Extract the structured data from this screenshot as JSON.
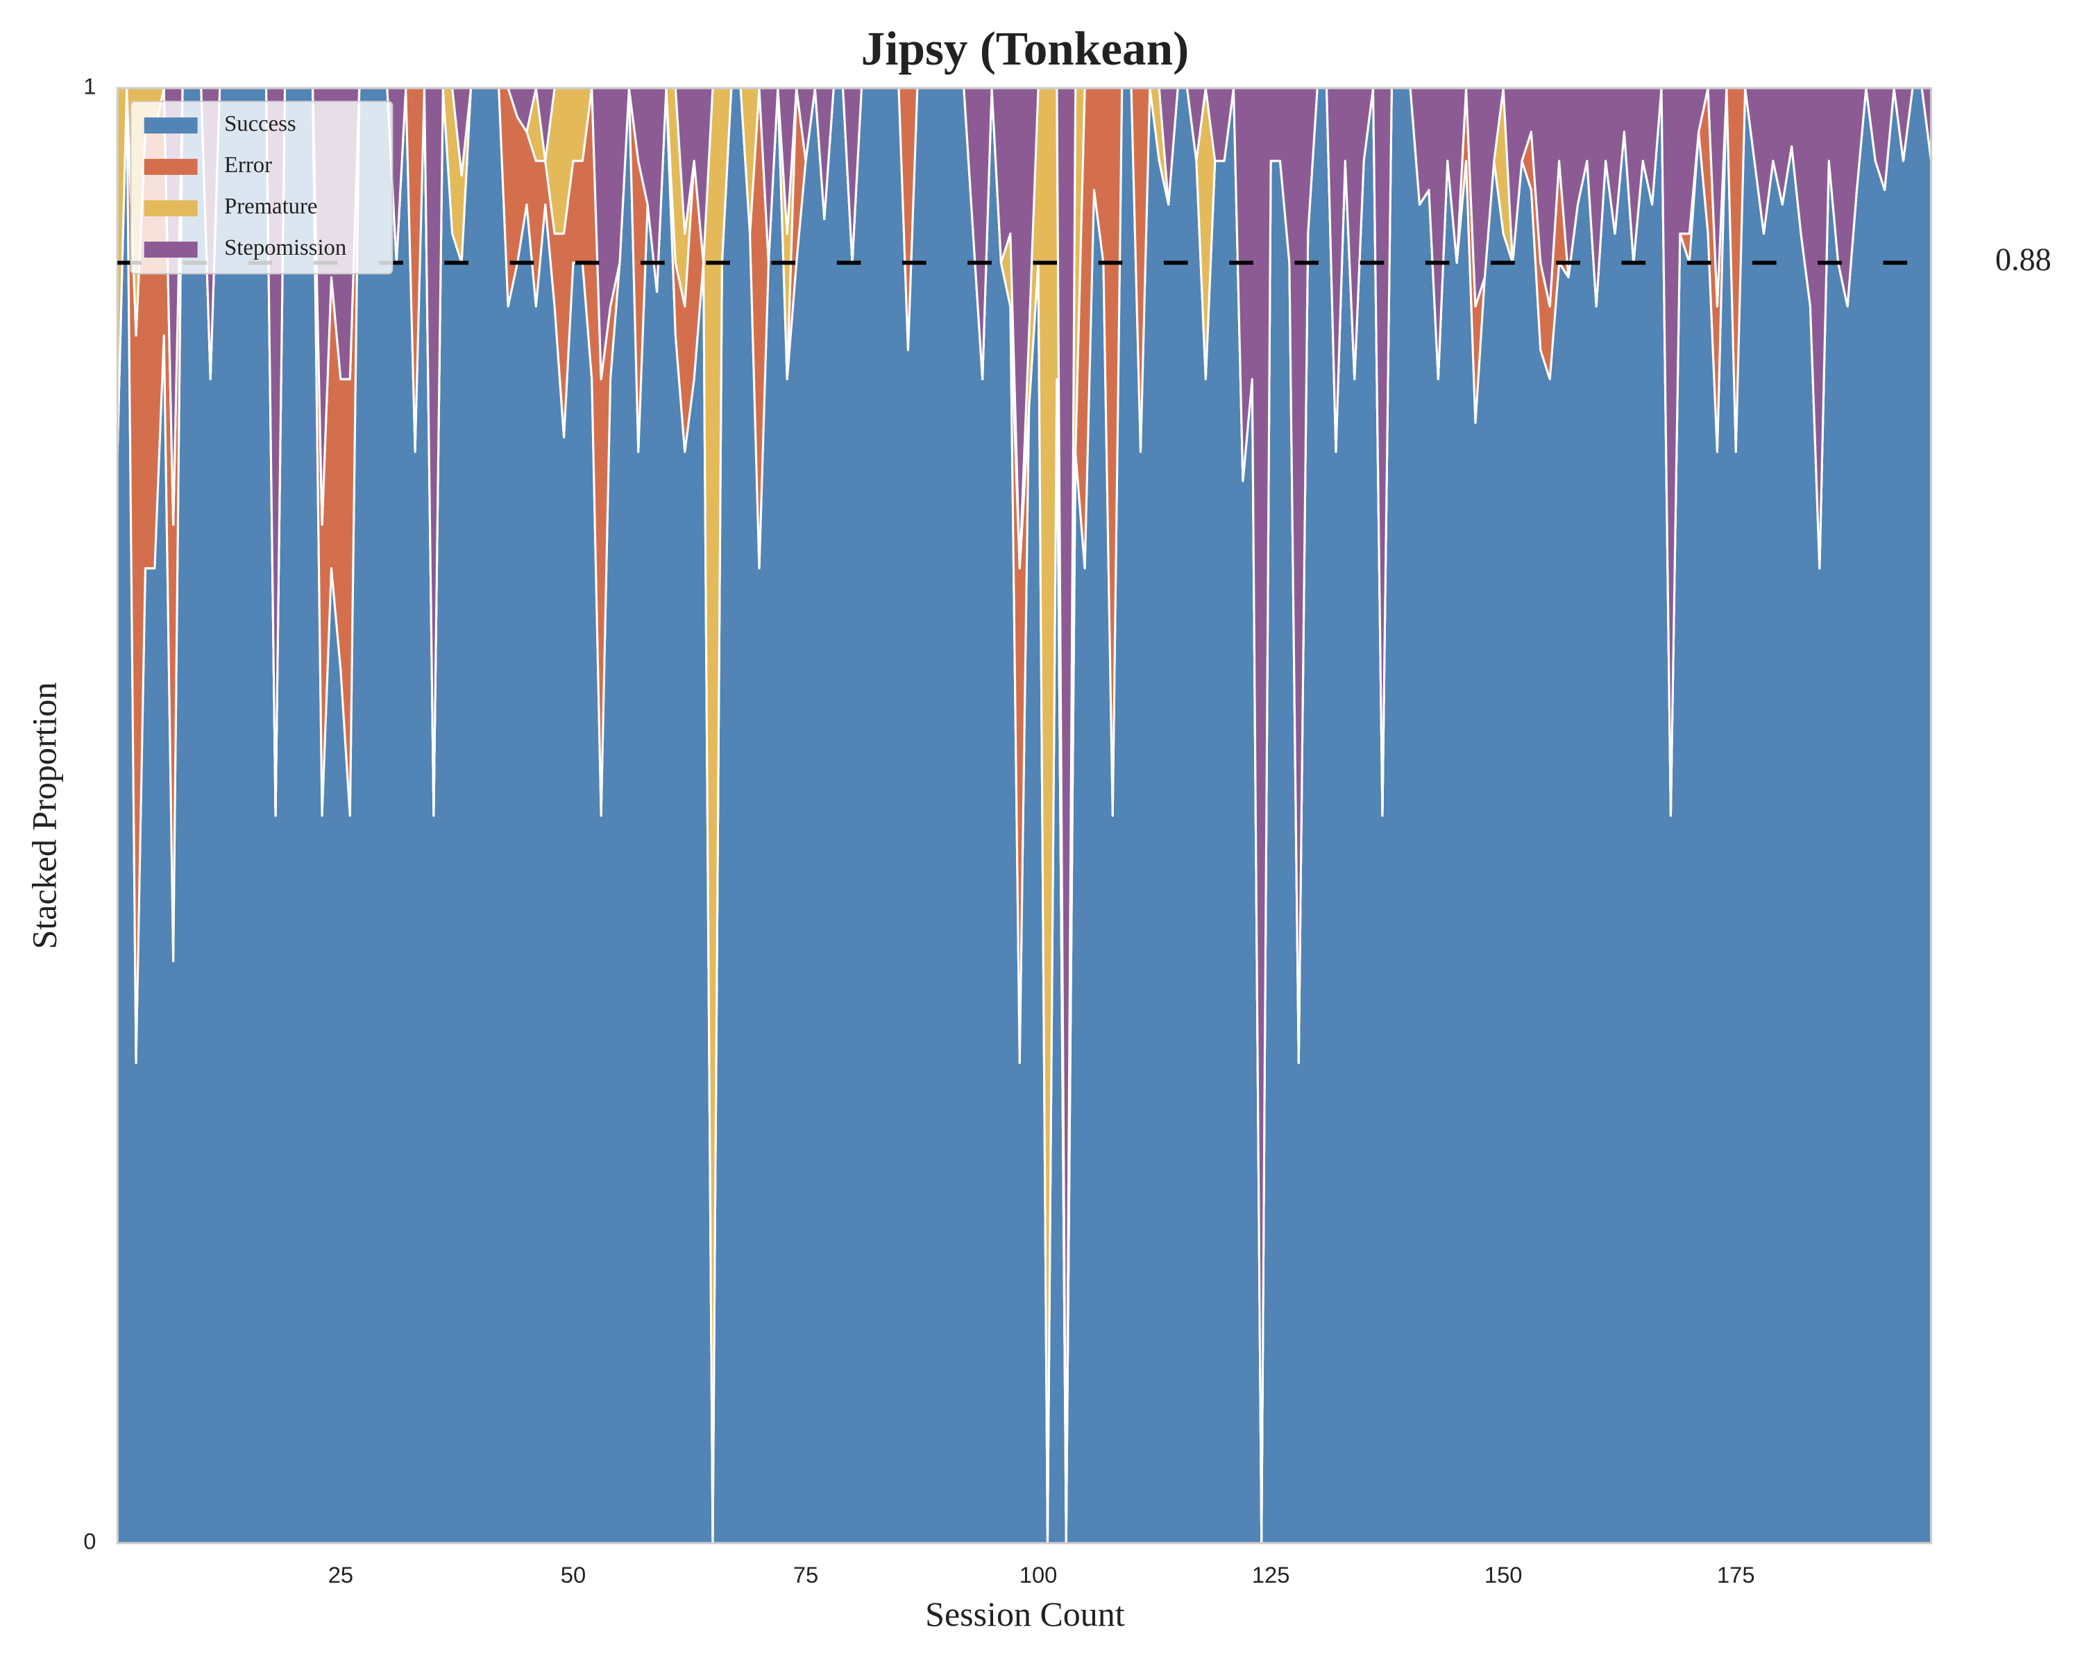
{
  "chart_data": {
    "type": "area",
    "stacked": true,
    "title": "Jipsy (Tonkean)",
    "xlabel": "Session Count",
    "ylabel": "Stacked Proportion",
    "x": [
      1,
      2,
      3,
      4,
      5,
      6,
      7,
      8,
      9,
      10,
      11,
      12,
      13,
      14,
      15,
      16,
      17,
      18,
      19,
      20,
      21,
      22,
      23,
      24,
      25,
      26,
      27,
      28,
      29,
      30,
      31,
      32,
      33,
      34,
      35,
      36,
      37,
      38,
      39,
      40,
      41,
      42,
      43,
      44,
      45,
      46,
      47,
      48,
      49,
      50,
      51,
      52,
      53,
      54,
      55,
      56,
      57,
      58,
      59,
      60,
      61,
      62,
      63,
      64,
      65,
      66,
      67,
      68,
      69,
      70,
      71,
      72,
      73,
      74,
      75,
      76,
      77,
      78,
      79,
      80,
      81,
      82,
      83,
      84,
      85,
      86,
      87,
      88,
      89,
      90,
      91,
      92,
      93,
      94,
      95,
      96,
      97,
      98,
      99,
      100,
      101,
      102,
      103,
      104,
      105,
      106,
      107,
      108,
      109,
      110,
      111,
      112,
      113,
      114,
      115,
      116,
      117,
      118,
      119,
      120,
      121,
      122,
      123,
      124,
      125,
      126,
      127,
      128,
      129,
      130,
      131,
      132,
      133,
      134,
      135,
      136,
      137,
      138,
      139,
      140,
      141,
      142,
      143,
      144,
      145,
      146,
      147,
      148,
      149,
      150,
      151,
      152,
      153,
      154,
      155,
      156,
      157,
      158,
      159,
      160,
      161,
      162,
      163,
      164,
      165,
      166,
      167,
      168,
      169,
      170,
      171,
      172,
      173,
      174,
      175,
      176,
      177,
      178,
      179,
      180,
      181,
      182,
      183,
      184,
      185,
      186,
      187,
      188,
      189,
      190,
      191,
      192,
      193,
      194,
      195,
      196
    ],
    "series": [
      {
        "name": "Success",
        "color": "#5284b5",
        "values": [
          0.75,
          1,
          0.33,
          0.67,
          0.67,
          0.83,
          0.4,
          1,
          1,
          1,
          0.8,
          1,
          1,
          1,
          1,
          1,
          1,
          0.5,
          1,
          1,
          1,
          1,
          0.5,
          0.67,
          0.6,
          0.5,
          1,
          1,
          1,
          1,
          0.88,
          1,
          0.75,
          1,
          0.5,
          1,
          0.9,
          0.88,
          1,
          1,
          1,
          1,
          0.85,
          0.88,
          0.92,
          0.85,
          0.92,
          0.85,
          0.76,
          0.88,
          0.88,
          0.8,
          0.5,
          0.8,
          0.88,
          1,
          0.75,
          0.92,
          0.86,
          1,
          0.83,
          0.75,
          0.8,
          0.88,
          0,
          0.88,
          1,
          1,
          0.9,
          0.67,
          0.88,
          1,
          0.8,
          0.88,
          0.95,
          1,
          0.91,
          1,
          1,
          0.88,
          1,
          1,
          1,
          1,
          1,
          0.82,
          1,
          1,
          1,
          1,
          1,
          1,
          0.9,
          0.8,
          1,
          0.88,
          0.85,
          0.33,
          0.78,
          0.88,
          0,
          0.8,
          0,
          0.75,
          0.67,
          0.93,
          0.88,
          0.5,
          1,
          1,
          0.75,
          1,
          0.95,
          0.92,
          1,
          1,
          0.95,
          0.8,
          0.95,
          0.95,
          1,
          0.73,
          0.8,
          0,
          0.95,
          0.95,
          0.88,
          0.33,
          0.9,
          1,
          1,
          0.75,
          0.95,
          0.8,
          0.95,
          1,
          0.5,
          1,
          1,
          1,
          0.92,
          0.93,
          0.8,
          0.95,
          0.88,
          0.95,
          0.77,
          0.87,
          0.95,
          0.9,
          0.88,
          0.95,
          0.93,
          0.82,
          0.8,
          0.88,
          0.87,
          0.92,
          0.95,
          0.85,
          0.95,
          0.9,
          0.97,
          0.88,
          0.95,
          0.92,
          1,
          0.5,
          0.9,
          0.88,
          0.97,
          0.9,
          0.75,
          1,
          0.75,
          1,
          0.95,
          0.9,
          0.95,
          0.92,
          0.96,
          0.9,
          0.85,
          0.67,
          0.95,
          0.88,
          0.85,
          0.93,
          1,
          0.95,
          0.93,
          1,
          0.95,
          1,
          1,
          0.95
        ]
      },
      {
        "name": "Error",
        "color": "#d46f4d",
        "values": [
          0,
          0,
          0.5,
          0.3,
          0.3,
          0.17,
          0.3,
          0,
          0,
          0,
          0,
          0,
          0,
          0,
          0,
          0,
          0,
          0,
          0,
          0,
          0,
          0,
          0.2,
          0.2,
          0.2,
          0.3,
          0,
          0,
          0,
          0,
          0,
          0,
          0.25,
          0,
          0,
          0,
          0,
          0,
          0,
          0,
          0,
          0,
          0.15,
          0.1,
          0.05,
          0.1,
          0.03,
          0.05,
          0.14,
          0.07,
          0.07,
          0.2,
          0.3,
          0.05,
          0,
          0,
          0.2,
          0,
          0,
          0,
          0.05,
          0.1,
          0.15,
          0,
          0,
          0,
          0,
          0,
          0,
          0.33,
          0,
          0,
          0,
          0.12,
          0,
          0,
          0,
          0,
          0,
          0,
          0,
          0,
          0,
          0,
          0,
          0.18,
          0,
          0,
          0,
          0,
          0,
          0,
          0,
          0,
          0,
          0,
          0,
          0.34,
          0,
          0,
          0,
          0,
          0,
          0,
          0.33,
          0.07,
          0.12,
          0.5,
          0,
          0,
          0.25,
          0,
          0,
          0,
          0,
          0,
          0,
          0,
          0,
          0,
          0,
          0,
          0,
          0,
          0,
          0,
          0,
          0,
          0,
          0,
          0,
          0,
          0,
          0,
          0,
          0,
          0,
          0,
          0,
          0,
          0,
          0,
          0,
          0,
          0,
          0.05,
          0.08,
          0,
          0,
          0,
          0,
          0,
          0.04,
          0.06,
          0.05,
          0.07,
          0,
          0,
          0,
          0,
          0,
          0,
          0,
          0,
          0,
          0,
          0,
          0,
          0,
          0.02,
          0,
          0.1,
          0.1,
          0,
          0.25,
          0,
          0,
          0,
          0,
          0,
          0,
          0,
          0,
          0,
          0,
          0,
          0,
          0,
          0,
          0,
          0,
          0,
          0,
          0,
          0,
          0
        ]
      },
      {
        "name": "Premature",
        "color": "#e3b95a",
        "values": [
          0.25,
          0,
          0.17,
          0.03,
          0.03,
          0,
          0,
          0,
          0,
          0,
          0,
          0,
          0,
          0,
          0,
          0,
          0,
          0,
          0,
          0,
          0,
          0,
          0,
          0,
          0,
          0,
          0,
          0,
          0,
          0,
          0,
          0,
          0,
          0,
          0,
          0,
          0.1,
          0.06,
          0,
          0,
          0,
          0,
          0,
          0,
          0,
          0.05,
          0,
          0.1,
          0.1,
          0.05,
          0.05,
          0,
          0,
          0,
          0,
          0,
          0,
          0,
          0,
          0,
          0.12,
          0.05,
          0,
          0,
          1,
          0.12,
          0,
          0,
          0.1,
          0,
          0,
          0,
          0.1,
          0,
          0,
          0,
          0,
          0,
          0,
          0,
          0,
          0,
          0,
          0,
          0,
          0,
          0,
          0,
          0,
          0,
          0,
          0,
          0,
          0,
          0,
          0,
          0.05,
          0,
          0.05,
          0.12,
          1,
          0.2,
          0,
          0.25,
          0,
          0,
          0,
          0,
          0,
          0,
          0,
          0,
          0.05,
          0,
          0,
          0,
          0,
          0.2,
          0,
          0,
          0,
          0,
          0,
          0,
          0,
          0,
          0,
          0,
          0,
          0,
          0,
          0,
          0,
          0,
          0,
          0,
          0,
          0,
          0,
          0,
          0,
          0,
          0,
          0,
          0,
          0,
          0,
          0,
          0,
          0.1,
          0,
          0,
          0,
          0,
          0,
          0,
          0,
          0,
          0,
          0,
          0,
          0,
          0,
          0,
          0,
          0,
          0,
          0,
          0,
          0,
          0,
          0,
          0,
          0,
          0,
          0,
          0,
          0,
          0,
          0,
          0,
          0,
          0,
          0,
          0,
          0,
          0,
          0,
          0,
          0,
          0,
          0,
          0,
          0,
          0,
          0
        ]
      },
      {
        "name": "Stepomission",
        "color": "#8c5b94",
        "values": [
          0,
          0,
          0,
          0,
          0,
          0,
          0.3,
          0,
          0,
          0,
          0.2,
          0,
          0,
          0,
          0,
          0,
          0,
          0.5,
          0,
          0,
          0,
          0,
          0.3,
          0.13,
          0.2,
          0.2,
          0,
          0,
          0,
          0,
          0.12,
          0,
          0,
          0,
          0.5,
          0,
          0,
          0.06,
          0,
          0,
          0,
          0,
          0,
          0.02,
          0.03,
          0,
          0.05,
          0,
          0,
          0,
          0,
          0,
          0.2,
          0.15,
          0.12,
          0,
          0.05,
          0.08,
          0.14,
          0,
          0,
          0.1,
          0.05,
          0.12,
          0,
          0,
          0,
          0,
          0,
          0,
          0.12,
          0,
          0.1,
          0,
          0.05,
          0,
          0.09,
          0,
          0,
          0.12,
          0,
          0,
          0,
          0,
          0,
          0,
          0,
          0,
          0,
          0,
          0,
          0,
          0.1,
          0.2,
          0,
          0.12,
          0.1,
          0.33,
          0.17,
          0,
          0,
          0,
          1,
          0,
          0,
          0,
          0,
          0,
          0,
          0,
          0,
          0,
          0,
          0.08,
          0,
          0,
          0.05,
          0,
          0.05,
          0.05,
          0,
          0.27,
          0.2,
          1,
          0.05,
          0.05,
          0.12,
          0.67,
          0.1,
          0,
          0,
          0.25,
          0.05,
          0.2,
          0.05,
          0,
          0.5,
          0,
          0,
          0,
          0.08,
          0.07,
          0.2,
          0.05,
          0.12,
          0,
          0.15,
          0.13,
          0.05,
          0,
          0.12,
          0.05,
          0.03,
          0.12,
          0.15,
          0.05,
          0.13,
          0.08,
          0.05,
          0.15,
          0.05,
          0.1,
          0.03,
          0.12,
          0.05,
          0.08,
          0,
          0.5,
          0.1,
          0.1,
          0.03,
          0,
          0.15,
          0,
          0,
          0,
          0.05,
          0.1,
          0.05,
          0.08,
          0.04,
          0.1,
          0.15,
          0.33,
          0.05,
          0.12,
          0.15,
          0.07,
          0,
          0.05,
          0.07,
          0,
          0.05,
          0,
          0,
          0.05
        ]
      }
    ],
    "xlim": [
      1,
      196
    ],
    "ylim": [
      0,
      1
    ],
    "xticks": [
      25,
      50,
      75,
      100,
      125,
      150,
      175
    ],
    "yticks": [
      0,
      1
    ],
    "hline": 0.88,
    "hline_color": "#000000",
    "legend": "upper left"
  }
}
